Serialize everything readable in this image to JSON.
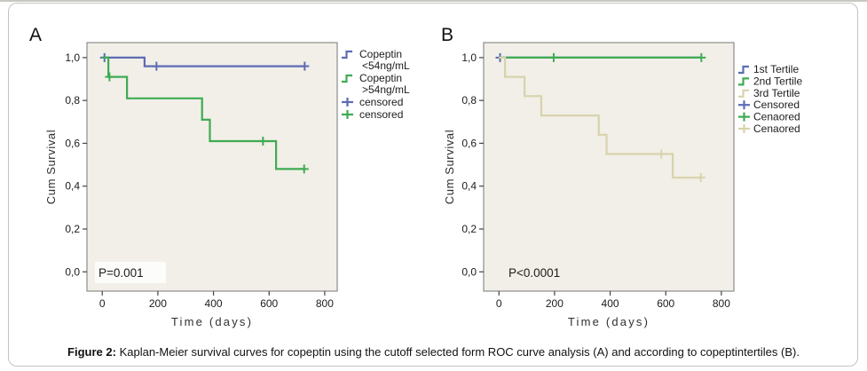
{
  "figure": {
    "caption_label": "Figure 2:",
    "caption_text": " Kaplan-Meier survival curves for copeptin using the cutoff selected form ROC curve analysis (A) and according to copeptintertiles (B)."
  },
  "colors": {
    "blue": "#5c6cb5",
    "green": "#3fab53",
    "tan": "#d8d3ac",
    "plot_bg": "#f1efe7",
    "plot_border": "#8c8c8c",
    "tick": "#444444"
  },
  "chart_data": [
    {
      "type": "line",
      "subtype": "kaplan-meier-step",
      "panel_label": "A",
      "xlabel": "Time (days)",
      "ylabel": "Cum Survival",
      "annotation": "P=0.001",
      "annotation_box": true,
      "xlim": [
        -55,
        845
      ],
      "ylim": [
        -0.09,
        1.07
      ],
      "xticks": [
        0,
        200,
        400,
        600,
        800
      ],
      "ytick_values": [
        0,
        0.2,
        0.4,
        0.6,
        0.8,
        1.0
      ],
      "ytick_labels": [
        "0,0",
        "0,2",
        "0,4",
        "0,6",
        "0,8",
        "1,0"
      ],
      "grid": false,
      "legend_position": "right-top",
      "series": [
        {
          "name": "Copeptin <54ng/mL",
          "color_key": "blue",
          "points": [
            [
              0,
              1.0
            ],
            [
              152,
              1.0
            ],
            [
              152,
              0.96
            ],
            [
              730,
              0.96
            ]
          ],
          "censored": [
            [
              8,
              1.0
            ],
            [
              195,
              0.96
            ],
            [
              728,
              0.96
            ]
          ]
        },
        {
          "name": "Copeptin >54ng/mL",
          "color_key": "green",
          "points": [
            [
              0,
              1.0
            ],
            [
              22,
              1.0
            ],
            [
              22,
              0.91
            ],
            [
              89,
              0.91
            ],
            [
              89,
              0.81
            ],
            [
              359,
              0.81
            ],
            [
              359,
              0.71
            ],
            [
              387,
              0.71
            ],
            [
              387,
              0.61
            ],
            [
              625,
              0.61
            ],
            [
              625,
              0.48
            ],
            [
              730,
              0.48
            ]
          ],
          "censored": [
            [
              26,
              0.91
            ],
            [
              578,
              0.61
            ],
            [
              726,
              0.48
            ]
          ]
        }
      ],
      "legend": [
        {
          "lines": [
            "Copeptin",
            "<54ng/mL"
          ],
          "glyph": "step",
          "color_key": "blue"
        },
        {
          "lines": [
            "Copeptin",
            ">54ng/mL"
          ],
          "glyph": "step",
          "color_key": "green"
        },
        {
          "lines": [
            "censored"
          ],
          "glyph": "plus",
          "color_key": "blue"
        },
        {
          "lines": [
            "censored"
          ],
          "glyph": "plus",
          "color_key": "green"
        }
      ]
    },
    {
      "type": "line",
      "subtype": "kaplan-meier-step",
      "panel_label": "B",
      "xlabel": "Time (days)",
      "ylabel": "Cum Survival",
      "annotation": "P<0.0001",
      "annotation_box": false,
      "xlim": [
        -55,
        845
      ],
      "ylim": [
        -0.09,
        1.07
      ],
      "xticks": [
        0,
        200,
        400,
        600,
        800
      ],
      "ytick_values": [
        0,
        0.2,
        0.4,
        0.6,
        0.8,
        1.0
      ],
      "ytick_labels": [
        "0,0",
        "0,2",
        "0,4",
        "0,6",
        "0,8",
        "1,0"
      ],
      "grid": false,
      "legend_position": "right-top",
      "series": [
        {
          "name": "1st Tertile",
          "color_key": "blue",
          "points": [
            [
              0,
              1.0
            ],
            [
              730,
              1.0
            ]
          ],
          "censored": [
            [
              4,
              1.0
            ]
          ]
        },
        {
          "name": "2nd Tertile",
          "color_key": "green",
          "points": [
            [
              0,
              1.0
            ],
            [
              730,
              1.0
            ]
          ],
          "censored": [
            [
              197,
              1.0
            ],
            [
              728,
              1.0
            ]
          ]
        },
        {
          "name": "3rd Tertile",
          "color_key": "tan",
          "points": [
            [
              0,
              1.0
            ],
            [
              22,
              1.0
            ],
            [
              22,
              0.91
            ],
            [
              92,
              0.91
            ],
            [
              92,
              0.82
            ],
            [
              152,
              0.82
            ],
            [
              152,
              0.73
            ],
            [
              359,
              0.73
            ],
            [
              359,
              0.64
            ],
            [
              387,
              0.64
            ],
            [
              387,
              0.55
            ],
            [
              625,
              0.55
            ],
            [
              625,
              0.44
            ],
            [
              730,
              0.44
            ]
          ],
          "censored": [
            [
              584,
              0.55
            ],
            [
              726,
              0.44
            ]
          ]
        }
      ],
      "legend": [
        {
          "lines": [
            "1st Tertile"
          ],
          "glyph": "step",
          "color_key": "blue"
        },
        {
          "lines": [
            "2nd Tertile"
          ],
          "glyph": "step",
          "color_key": "green"
        },
        {
          "lines": [
            "3rd Tertile"
          ],
          "glyph": "step",
          "color_key": "tan"
        },
        {
          "lines": [
            "Censored"
          ],
          "glyph": "plus",
          "color_key": "blue"
        },
        {
          "lines": [
            "Cenaored"
          ],
          "glyph": "plus",
          "color_key": "green"
        },
        {
          "lines": [
            "Cenaored"
          ],
          "glyph": "plus",
          "color_key": "tan"
        }
      ]
    }
  ]
}
